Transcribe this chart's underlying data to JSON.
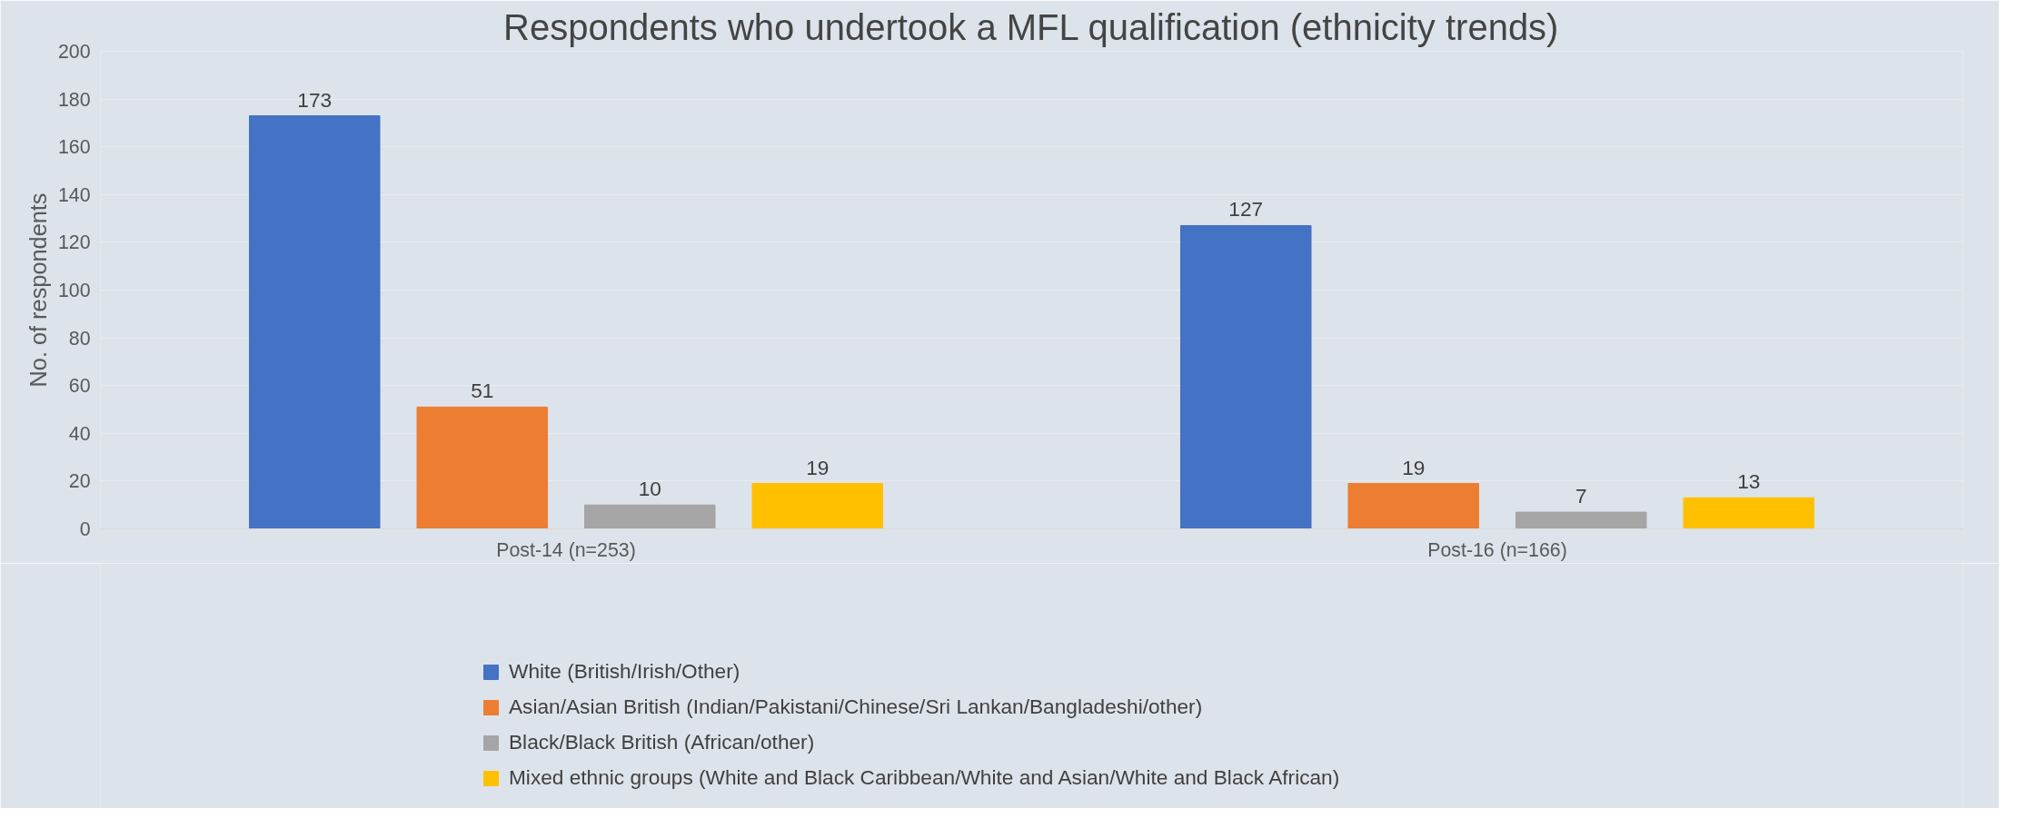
{
  "chart_data": {
    "type": "bar",
    "title": "Respondents who undertook a MFL qualification (ethnicity trends)",
    "ylabel": "No. of respondents",
    "categories": [
      "Post-14 (n=253)",
      "Post-16 (n=166)"
    ],
    "series": [
      {
        "name": "White (British/Irish/Other)",
        "color": "#4472c4",
        "values": [
          173,
          127
        ]
      },
      {
        "name": "Asian/Asian British (Indian/Pakistani/Chinese/Sri Lankan/Bangladeshi/other)",
        "color": "#ed7d31",
        "values": [
          51,
          19
        ]
      },
      {
        "name": "Black/Black British (African/other)",
        "color": "#a5a5a5",
        "values": [
          10,
          7
        ]
      },
      {
        "name": "Mixed ethnic groups (White and Black Caribbean/White and Asian/White and Black African)",
        "color": "#ffc000",
        "values": [
          19,
          13
        ]
      }
    ],
    "ylim": [
      0,
      200
    ],
    "yticks": [
      0,
      20,
      40,
      60,
      80,
      100,
      120,
      140,
      160,
      180,
      200
    ],
    "grid": "y",
    "legend": "bottom",
    "data_labels": true
  }
}
